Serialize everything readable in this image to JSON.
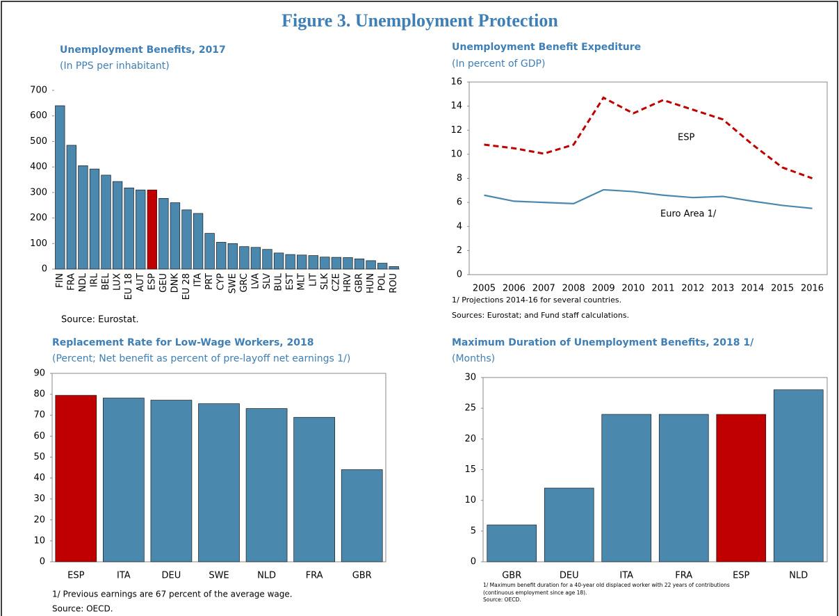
{
  "figure_title": "Figure 3. Unemployment Protection",
  "chart_data": [
    {
      "type": "bar",
      "title": "Unemployment Benefits, 2017",
      "subtitle": "(In PPS per inhabitant)",
      "categories": [
        "FIN",
        "FRA",
        "NDL",
        "IRL",
        "BEL",
        "LUX",
        "EU 18",
        "AUT",
        "ESP",
        "GEU",
        "DNK",
        "EU 28",
        "ITA",
        "PRT",
        "CYP",
        "SWE",
        "GRC",
        "LVA",
        "SLV",
        "BUL",
        "EST",
        "MLT",
        "LIT",
        "SLK",
        "CZE",
        "HRV",
        "GBR",
        "HUN",
        "POL",
        "ROU"
      ],
      "values": [
        640,
        485,
        405,
        392,
        368,
        343,
        318,
        310,
        310,
        277,
        260,
        232,
        218,
        140,
        105,
        100,
        88,
        85,
        77,
        63,
        57,
        55,
        53,
        47,
        46,
        45,
        40,
        33,
        23,
        10
      ],
      "colors": [
        "#4a88ad",
        "#4a88ad",
        "#4a88ad",
        "#4a88ad",
        "#4a88ad",
        "#4a88ad",
        "#4a88ad",
        "#4a88ad",
        "#c00000",
        "#4a88ad",
        "#4a88ad",
        "#4a88ad",
        "#4a88ad",
        "#4a88ad",
        "#4a88ad",
        "#4a88ad",
        "#4a88ad",
        "#4a88ad",
        "#4a88ad",
        "#4a88ad",
        "#4a88ad",
        "#4a88ad",
        "#4a88ad",
        "#4a88ad",
        "#4a88ad",
        "#4a88ad",
        "#4a88ad",
        "#4a88ad",
        "#4a88ad",
        "#4a88ad"
      ],
      "ylim": [
        0,
        700
      ],
      "yticks": [
        0,
        100,
        200,
        300,
        400,
        500,
        600,
        700
      ],
      "rotated_labels": true,
      "frame": false,
      "notes": [
        "Source: Eurostat."
      ]
    },
    {
      "type": "line",
      "title": "Unemployment Benefit Expediture",
      "subtitle": "(In percent of GDP)",
      "categories": [
        "2005",
        "2006",
        "2007",
        "2008",
        "2009",
        "2010",
        "2011",
        "2012",
        "2013",
        "2014",
        "2015",
        "2016"
      ],
      "series": [
        {
          "name": "ESP",
          "color": "#c00000",
          "dashed": true,
          "values": [
            10.8,
            10.5,
            10.05,
            10.8,
            14.7,
            13.4,
            14.5,
            13.7,
            12.9,
            10.8,
            8.9,
            8.0
          ]
        },
        {
          "name": "Euro Area 1/",
          "color": "#4a88ad",
          "dashed": false,
          "values": [
            6.6,
            6.1,
            6.0,
            5.9,
            7.05,
            6.9,
            6.6,
            6.4,
            6.5,
            6.1,
            5.75,
            5.5
          ]
        }
      ],
      "ylim": [
        0,
        16
      ],
      "yticks": [
        0,
        2,
        4,
        6,
        8,
        10,
        12,
        14,
        16
      ],
      "frame": true,
      "notes": [
        "1/ Projections 2014-16 for several countries.",
        "Sources: Eurostat; and Fund staff calculations."
      ]
    },
    {
      "type": "bar",
      "title": "Replacement Rate for Low-Wage Workers, 2018",
      "subtitle": "(Percent; Net benefit as percent of pre-layoff net earnings 1/)",
      "categories": [
        "ESP",
        "ITA",
        "DEU",
        "SWE",
        "NLD",
        "FRA",
        "GBR"
      ],
      "values": [
        79.5,
        78.2,
        77.2,
        75.5,
        73.2,
        69,
        44
      ],
      "colors": [
        "#c00000",
        "#4a88ad",
        "#4a88ad",
        "#4a88ad",
        "#4a88ad",
        "#4a88ad",
        "#4a88ad"
      ],
      "ylim": [
        0,
        90
      ],
      "yticks": [
        0,
        10,
        20,
        30,
        40,
        50,
        60,
        70,
        80,
        90
      ],
      "rotated_labels": false,
      "frame": true,
      "notes": [
        "1/ Previous earnings are 67 percent of the average wage.",
        "Source: OECD."
      ]
    },
    {
      "type": "bar",
      "title": "Maximum Duration of Unemployment Benefits, 2018 1/",
      "subtitle": "(Months)",
      "categories": [
        "GBR",
        "DEU",
        "ITA",
        "FRA",
        "ESP",
        "NLD"
      ],
      "values": [
        6,
        12,
        24,
        24,
        24,
        28
      ],
      "colors": [
        "#4a88ad",
        "#4a88ad",
        "#4a88ad",
        "#4a88ad",
        "#c00000",
        "#4a88ad"
      ],
      "ylim": [
        0,
        30
      ],
      "yticks": [
        0,
        5,
        10,
        15,
        20,
        25,
        30
      ],
      "rotated_labels": false,
      "frame": true,
      "notes": [
        "1/ Maximum benefit duration for a 40-year old displaced worker with 22 years of contributions",
        "(continuous employment since age 18).",
        "Source: OECD."
      ]
    }
  ]
}
